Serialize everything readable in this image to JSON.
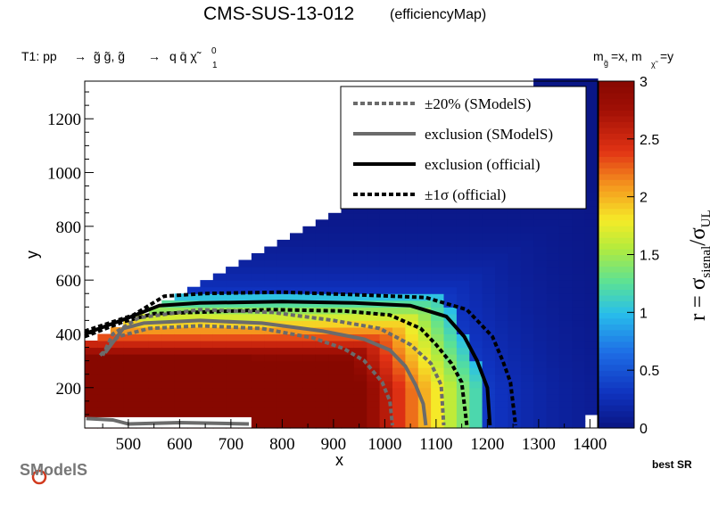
{
  "header": {
    "title": "CMS-SUS-13-012",
    "subtitle": "(efficiencyMap)",
    "process_prefix": "T1: pp",
    "process_part1": "g̃ g̃, g̃",
    "process_part2": "q q̄  χ̃",
    "process_sup": "0",
    "process_sub": "1",
    "mass_label": "m",
    "mass_g_sub": "g̃",
    "mass_mid": "=x, m",
    "mass_chi_sub": "χ̃",
    "mass_end": "=y",
    "best_sr": "best SR",
    "logo": "SModelS"
  },
  "chart_data": {
    "type": "heatmap",
    "xlabel": "x",
    "ylabel": "y",
    "xlim": [
      415,
      1415
    ],
    "ylim": [
      50,
      1340
    ],
    "x_ticks": [
      500,
      600,
      700,
      800,
      900,
      1000,
      1100,
      1200,
      1300,
      1400
    ],
    "y_ticks": [
      200,
      400,
      600,
      800,
      1000,
      1200
    ],
    "z_label_main": "r = σ",
    "z_label_sub1": "signal",
    "z_label_mid": "/σ",
    "z_label_sub2": "UL",
    "z_range": [
      0,
      3
    ],
    "z_ticks": [
      "0",
      "0.5",
      "1",
      "1.5",
      "2",
      "2.5",
      "3"
    ],
    "colors": {
      "low": "#081c8c",
      "mid_blue": "#1d5fd6",
      "cyan": "#31c3e8",
      "green": "#7be08a",
      "yellow": "#f2ee2a",
      "orange": "#f5871e",
      "red": "#dd2412",
      "high": "#8b0a00",
      "legend_box": "#aaaadc"
    },
    "legend": [
      {
        "label": "±20% (SModelS)",
        "style": "dotted",
        "color": "#6b6b6b"
      },
      {
        "label": "exclusion (SModelS)",
        "style": "solid",
        "color": "#6b6b6b"
      },
      {
        "label": "exclusion (official)",
        "style": "solid",
        "color": "#000000"
      },
      {
        "label": "±1σ (official)",
        "style": "dotted",
        "color": "#000000"
      }
    ],
    "contours": {
      "exclusion_official": [
        [
          415,
          400
        ],
        [
          500,
          460
        ],
        [
          560,
          505
        ],
        [
          640,
          515
        ],
        [
          800,
          520
        ],
        [
          940,
          515
        ],
        [
          1050,
          505
        ],
        [
          1120,
          465
        ],
        [
          1155,
          390
        ],
        [
          1180,
          300
        ],
        [
          1200,
          200
        ],
        [
          1205,
          60
        ]
      ],
      "official_plus1sigma": [
        [
          415,
          410
        ],
        [
          510,
          470
        ],
        [
          570,
          540
        ],
        [
          650,
          550
        ],
        [
          800,
          555
        ],
        [
          950,
          545
        ],
        [
          1080,
          535
        ],
        [
          1160,
          490
        ],
        [
          1210,
          390
        ],
        [
          1230,
          300
        ],
        [
          1245,
          220
        ],
        [
          1255,
          60
        ]
      ],
      "official_minus1sigma": [
        [
          415,
          390
        ],
        [
          490,
          445
        ],
        [
          550,
          475
        ],
        [
          630,
          480
        ],
        [
          780,
          490
        ],
        [
          920,
          485
        ],
        [
          1010,
          470
        ],
        [
          1070,
          420
        ],
        [
          1100,
          360
        ],
        [
          1130,
          290
        ],
        [
          1150,
          220
        ],
        [
          1160,
          60
        ]
      ],
      "exclusion_smodels": [
        [
          455,
          330
        ],
        [
          490,
          420
        ],
        [
          530,
          440
        ],
        [
          640,
          450
        ],
        [
          760,
          440
        ],
        [
          880,
          410
        ],
        [
          960,
          380
        ],
        [
          1010,
          340
        ],
        [
          1040,
          280
        ],
        [
          1060,
          210
        ],
        [
          1075,
          140
        ],
        [
          1080,
          60
        ]
      ],
      "smodels_plus20": [
        [
          450,
          320
        ],
        [
          470,
          400
        ],
        [
          520,
          460
        ],
        [
          640,
          490
        ],
        [
          780,
          480
        ],
        [
          900,
          450
        ],
        [
          990,
          420
        ],
        [
          1050,
          360
        ],
        [
          1090,
          290
        ],
        [
          1110,
          210
        ],
        [
          1115,
          60
        ]
      ],
      "smodels_minus20": [
        [
          445,
          320
        ],
        [
          480,
          390
        ],
        [
          540,
          420
        ],
        [
          640,
          430
        ],
        [
          760,
          420
        ],
        [
          860,
          385
        ],
        [
          920,
          345
        ],
        [
          960,
          300
        ],
        [
          995,
          220
        ],
        [
          1010,
          150
        ],
        [
          1015,
          60
        ]
      ],
      "smodels_lower": [
        [
          418,
          85
        ],
        [
          470,
          80
        ],
        [
          500,
          65
        ],
        [
          600,
          70
        ],
        [
          735,
          65
        ]
      ]
    }
  }
}
